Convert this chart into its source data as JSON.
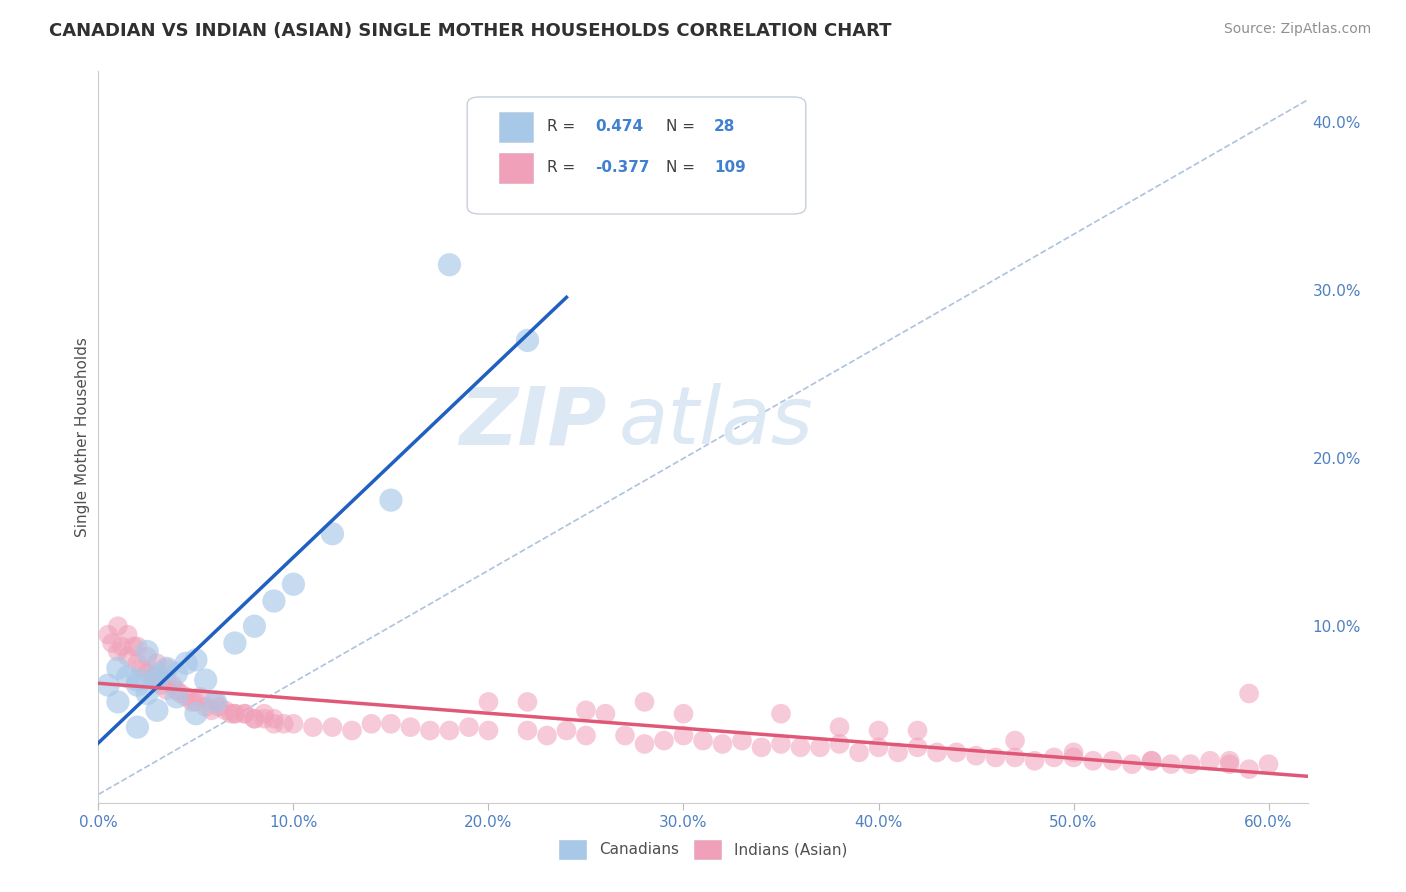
{
  "title": "CANADIAN VS INDIAN (ASIAN) SINGLE MOTHER HOUSEHOLDS CORRELATION CHART",
  "source": "Source: ZipAtlas.com",
  "ylabel": "Single Mother Households",
  "xlim": [
    0.0,
    0.62
  ],
  "ylim": [
    -0.005,
    0.43
  ],
  "legend1_r": "0.474",
  "legend1_n": "28",
  "legend2_r": "-0.377",
  "legend2_n": "109",
  "canadian_color": "#a8c8e8",
  "indian_color": "#f0a0b8",
  "canadian_trend_color": "#2060c0",
  "indian_trend_color": "#e05878",
  "diagonal_color": "#a0b8d8",
  "background_color": "#ffffff",
  "grid_color": "#d8e0ec",
  "watermark_color": "#dce8f4",
  "title_color": "#303030",
  "axis_tick_color": "#5080c0",
  "legend_value_color": "#4080d0",
  "canadians_label": "Canadians",
  "indians_label": "Indians (Asian)",
  "canadian_points_x": [
    0.005,
    0.01,
    0.015,
    0.02,
    0.025,
    0.01,
    0.02,
    0.025,
    0.03,
    0.035,
    0.03,
    0.04,
    0.045,
    0.05,
    0.055,
    0.02,
    0.03,
    0.04,
    0.05,
    0.06,
    0.07,
    0.08,
    0.09,
    0.1,
    0.12,
    0.15,
    0.18,
    0.22
  ],
  "canadian_points_y": [
    0.065,
    0.075,
    0.07,
    0.065,
    0.085,
    0.055,
    0.068,
    0.06,
    0.072,
    0.075,
    0.068,
    0.072,
    0.078,
    0.08,
    0.068,
    0.04,
    0.05,
    0.058,
    0.048,
    0.055,
    0.09,
    0.1,
    0.115,
    0.125,
    0.155,
    0.175,
    0.315,
    0.27
  ],
  "indian_points_x": [
    0.005,
    0.007,
    0.01,
    0.012,
    0.015,
    0.018,
    0.02,
    0.022,
    0.025,
    0.028,
    0.03,
    0.03,
    0.032,
    0.035,
    0.035,
    0.038,
    0.04,
    0.042,
    0.045,
    0.048,
    0.05,
    0.052,
    0.055,
    0.058,
    0.06,
    0.062,
    0.065,
    0.068,
    0.07,
    0.01,
    0.015,
    0.02,
    0.025,
    0.03,
    0.035,
    0.075,
    0.08,
    0.085,
    0.09,
    0.095,
    0.1,
    0.11,
    0.12,
    0.13,
    0.14,
    0.15,
    0.16,
    0.17,
    0.18,
    0.19,
    0.2,
    0.22,
    0.23,
    0.24,
    0.25,
    0.27,
    0.28,
    0.29,
    0.3,
    0.31,
    0.32,
    0.33,
    0.34,
    0.35,
    0.36,
    0.37,
    0.38,
    0.39,
    0.4,
    0.41,
    0.42,
    0.43,
    0.44,
    0.45,
    0.46,
    0.47,
    0.48,
    0.49,
    0.5,
    0.51,
    0.52,
    0.53,
    0.54,
    0.55,
    0.56,
    0.57,
    0.58,
    0.59,
    0.6,
    0.28,
    0.3,
    0.35,
    0.38,
    0.4,
    0.42,
    0.47,
    0.5,
    0.54,
    0.58,
    0.59,
    0.2,
    0.22,
    0.25,
    0.26,
    0.07,
    0.075,
    0.08,
    0.085,
    0.09
  ],
  "indian_points_y": [
    0.095,
    0.09,
    0.085,
    0.088,
    0.082,
    0.088,
    0.078,
    0.075,
    0.072,
    0.07,
    0.068,
    0.072,
    0.065,
    0.068,
    0.062,
    0.065,
    0.062,
    0.06,
    0.058,
    0.055,
    0.055,
    0.058,
    0.052,
    0.05,
    0.055,
    0.052,
    0.05,
    0.048,
    0.048,
    0.1,
    0.095,
    0.088,
    0.082,
    0.078,
    0.075,
    0.048,
    0.045,
    0.048,
    0.045,
    0.042,
    0.042,
    0.04,
    0.04,
    0.038,
    0.042,
    0.042,
    0.04,
    0.038,
    0.038,
    0.04,
    0.038,
    0.038,
    0.035,
    0.038,
    0.035,
    0.035,
    0.03,
    0.032,
    0.035,
    0.032,
    0.03,
    0.032,
    0.028,
    0.03,
    0.028,
    0.028,
    0.03,
    0.025,
    0.028,
    0.025,
    0.028,
    0.025,
    0.025,
    0.023,
    0.022,
    0.022,
    0.02,
    0.022,
    0.022,
    0.02,
    0.02,
    0.018,
    0.02,
    0.018,
    0.018,
    0.02,
    0.018,
    0.015,
    0.018,
    0.055,
    0.048,
    0.048,
    0.04,
    0.038,
    0.038,
    0.032,
    0.025,
    0.02,
    0.02,
    0.06,
    0.055,
    0.055,
    0.05,
    0.048,
    0.048,
    0.048,
    0.045,
    0.045,
    0.042
  ],
  "right_yticks": [
    0.0,
    0.1,
    0.2,
    0.3,
    0.4
  ],
  "right_ytick_labels": [
    "",
    "10.0%",
    "20.0%",
    "30.0%",
    "40.0%"
  ],
  "xtick_vals": [
    0.0,
    0.1,
    0.2,
    0.3,
    0.4,
    0.5,
    0.6
  ],
  "xtick_labels": [
    "0.0%",
    "10.0%",
    "20.0%",
    "30.0%",
    "40.0%",
    "50.0%",
    "60.0%"
  ]
}
